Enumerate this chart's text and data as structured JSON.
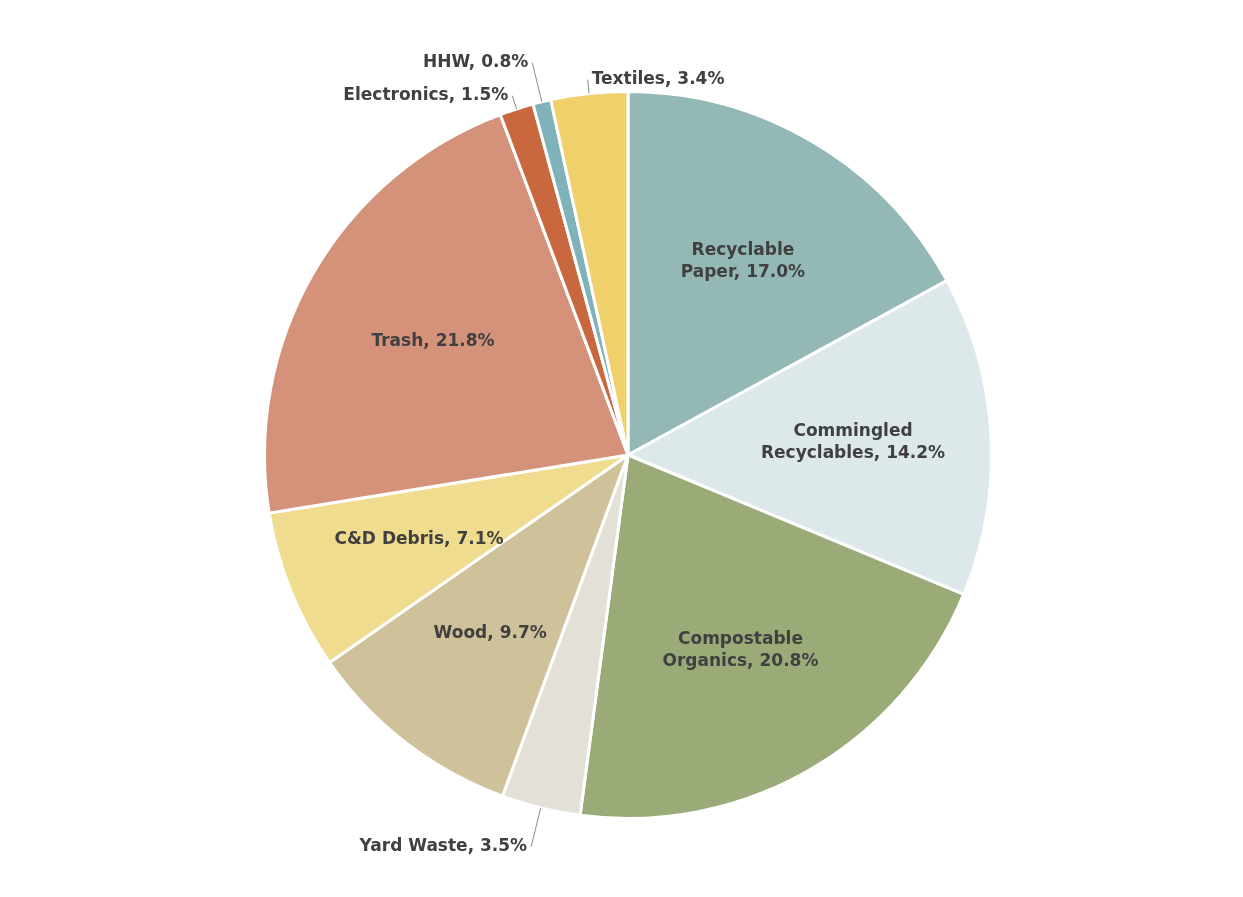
{
  "chart_data": {
    "type": "pie",
    "categories": [
      "Recyclable Paper",
      "Commingled Recyclables",
      "Compostable Organics",
      "Yard Waste",
      "Wood",
      "C&D Debris",
      "Trash",
      "Electronics",
      "HHW",
      "Textiles"
    ],
    "values": [
      17.0,
      14.2,
      20.8,
      3.5,
      9.7,
      7.1,
      21.8,
      1.5,
      0.8,
      3.4
    ],
    "value_labels": [
      "17.0%",
      "14.2%",
      "20.8%",
      "3.5%",
      "9.7%",
      "7.1%",
      "21.8%",
      "1.5%",
      "0.8%",
      "3.4%"
    ],
    "colors": [
      "#94b8b6",
      "#dde8ea",
      "#9aab78",
      "#e3e1d7",
      "#cfc29b",
      "#f0dc8e",
      "#d5927b",
      "#c9683f",
      "#80b3b9",
      "#efd06a"
    ],
    "legend": false
  }
}
